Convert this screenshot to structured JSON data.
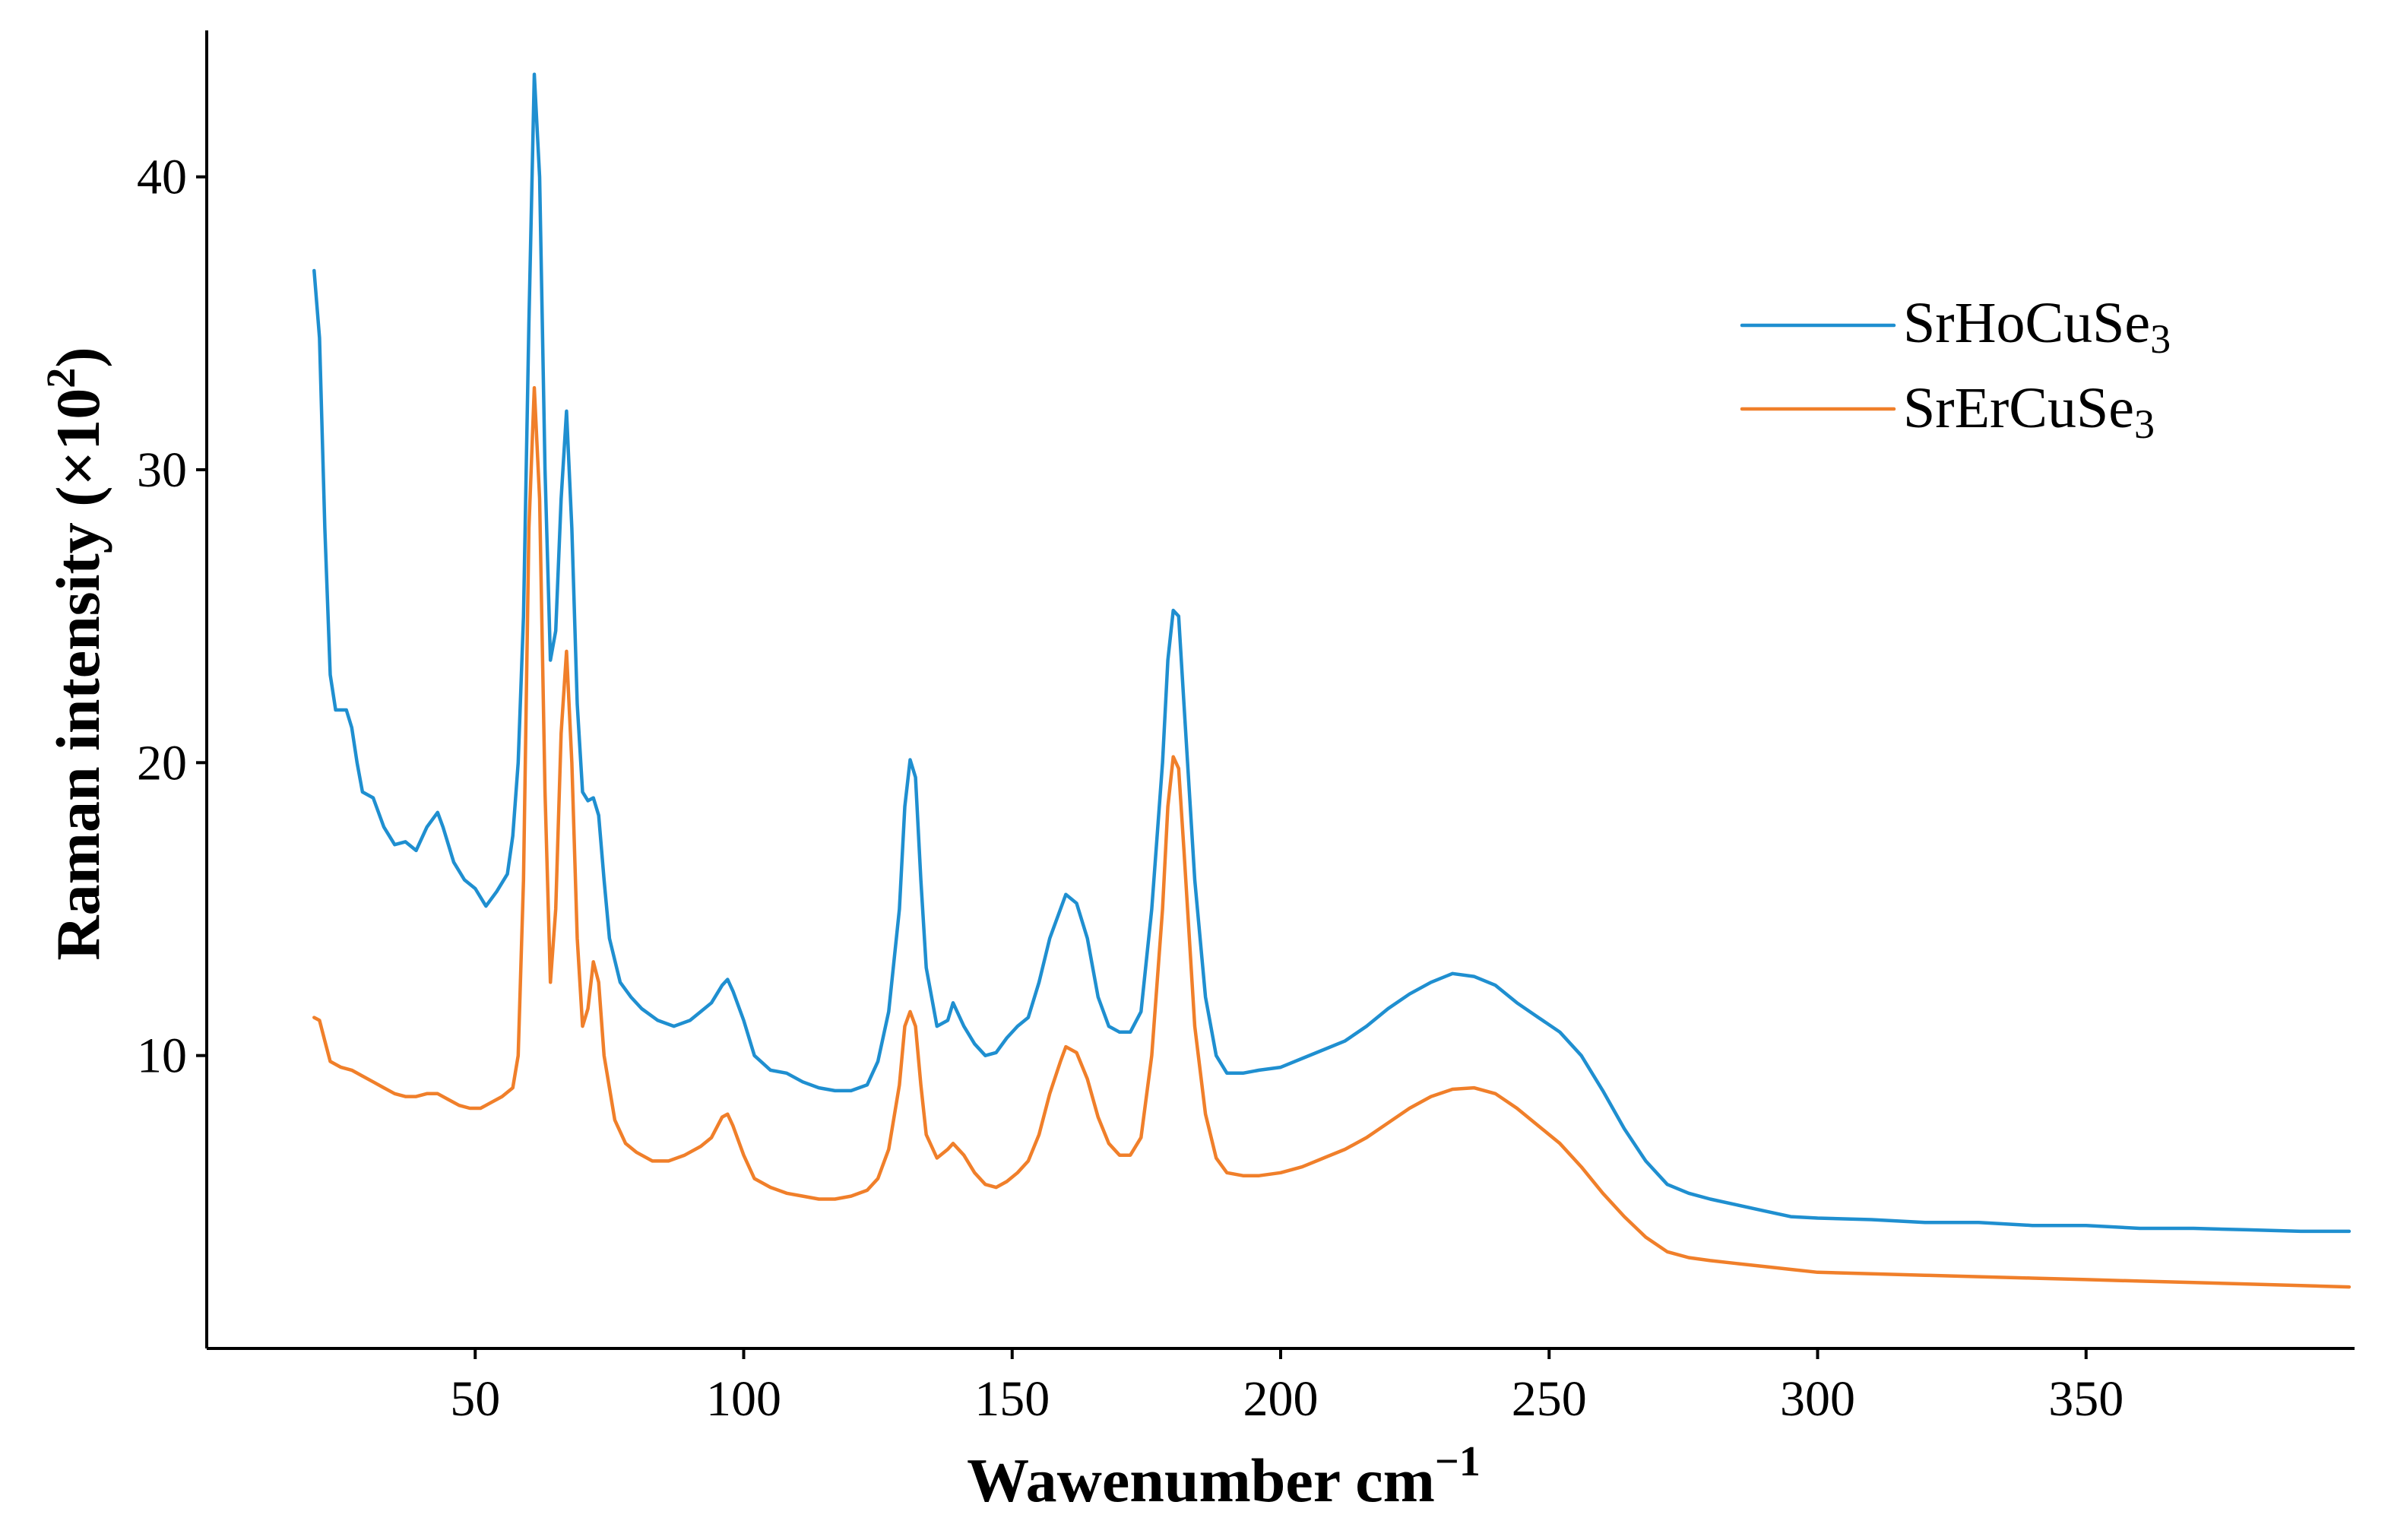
{
  "chart_data": {
    "type": "line",
    "title": "",
    "xlabel": "Wawenumber cm",
    "xlabel_superscript": "−1",
    "ylabel": "Raman intensity (×10",
    "ylabel_superscript": "2",
    "ylabel_suffix": ")",
    "xlim": [
      0,
      400
    ],
    "ylim": [
      0,
      45
    ],
    "xticks": [
      50,
      100,
      150,
      200,
      250,
      300,
      350
    ],
    "xtick_labels": [
      "50",
      "100",
      "150",
      "200",
      "250",
      "300",
      "350"
    ],
    "yticks": [
      10,
      20,
      30,
      40
    ],
    "ytick_labels": [
      "10",
      "20",
      "30",
      "40"
    ],
    "grid": false,
    "legend_position": "top-right",
    "series": [
      {
        "name": "SrHoCuSe",
        "name_subscript": "3",
        "color": "#1f8fd0",
        "points": [
          [
            20,
            36.8
          ],
          [
            21,
            34.5
          ],
          [
            22,
            28
          ],
          [
            23,
            23
          ],
          [
            24,
            21.8
          ],
          [
            26,
            21.8
          ],
          [
            27,
            21.2
          ],
          [
            28,
            20
          ],
          [
            29,
            19
          ],
          [
            31,
            18.8
          ],
          [
            33,
            17.8
          ],
          [
            35,
            17.2
          ],
          [
            37,
            17.3
          ],
          [
            39,
            17.0
          ],
          [
            41,
            17.8
          ],
          [
            43,
            18.3
          ],
          [
            44,
            17.8
          ],
          [
            46,
            16.6
          ],
          [
            48,
            16.0
          ],
          [
            50,
            15.7
          ],
          [
            52,
            15.1
          ],
          [
            54,
            15.6
          ],
          [
            56,
            16.2
          ],
          [
            57,
            17.5
          ],
          [
            58,
            20
          ],
          [
            59,
            25
          ],
          [
            60,
            35
          ],
          [
            61,
            43.5
          ],
          [
            62,
            40
          ],
          [
            63,
            30
          ],
          [
            64,
            23.5
          ],
          [
            65,
            24.5
          ],
          [
            66,
            29
          ],
          [
            67,
            32
          ],
          [
            68,
            28
          ],
          [
            69,
            22
          ],
          [
            70,
            19
          ],
          [
            71,
            18.7
          ],
          [
            72,
            18.8
          ],
          [
            73,
            18.2
          ],
          [
            74,
            16
          ],
          [
            75,
            14
          ],
          [
            77,
            12.5
          ],
          [
            79,
            12.0
          ],
          [
            81,
            11.6
          ],
          [
            84,
            11.2
          ],
          [
            87,
            11.0
          ],
          [
            90,
            11.2
          ],
          [
            92,
            11.5
          ],
          [
            94,
            11.8
          ],
          [
            96,
            12.4
          ],
          [
            97,
            12.6
          ],
          [
            98,
            12.2
          ],
          [
            100,
            11.2
          ],
          [
            102,
            10.0
          ],
          [
            105,
            9.5
          ],
          [
            108,
            9.4
          ],
          [
            111,
            9.1
          ],
          [
            114,
            8.9
          ],
          [
            117,
            8.8
          ],
          [
            120,
            8.8
          ],
          [
            123,
            9.0
          ],
          [
            125,
            9.8
          ],
          [
            127,
            11.5
          ],
          [
            129,
            15
          ],
          [
            130,
            18.5
          ],
          [
            131,
            20.1
          ],
          [
            132,
            19.5
          ],
          [
            133,
            16
          ],
          [
            134,
            13
          ],
          [
            136,
            11.0
          ],
          [
            138,
            11.2
          ],
          [
            139,
            11.8
          ],
          [
            141,
            11.0
          ],
          [
            143,
            10.4
          ],
          [
            145,
            10.0
          ],
          [
            147,
            10.1
          ],
          [
            149,
            10.6
          ],
          [
            151,
            11.0
          ],
          [
            153,
            11.3
          ],
          [
            155,
            12.5
          ],
          [
            157,
            14
          ],
          [
            159,
            15
          ],
          [
            160,
            15.5
          ],
          [
            162,
            15.2
          ],
          [
            164,
            14.0
          ],
          [
            166,
            12
          ],
          [
            168,
            11.0
          ],
          [
            170,
            10.8
          ],
          [
            172,
            10.8
          ],
          [
            174,
            11.5
          ],
          [
            176,
            15
          ],
          [
            178,
            20
          ],
          [
            179,
            23.5
          ],
          [
            180,
            25.2
          ],
          [
            181,
            25.0
          ],
          [
            182,
            22
          ],
          [
            184,
            16
          ],
          [
            186,
            12
          ],
          [
            188,
            10
          ],
          [
            190,
            9.4
          ],
          [
            193,
            9.4
          ],
          [
            196,
            9.5
          ],
          [
            200,
            9.6
          ],
          [
            204,
            9.9
          ],
          [
            208,
            10.2
          ],
          [
            212,
            10.5
          ],
          [
            216,
            11.0
          ],
          [
            220,
            11.6
          ],
          [
            224,
            12.1
          ],
          [
            228,
            12.5
          ],
          [
            232,
            12.8
          ],
          [
            236,
            12.7
          ],
          [
            240,
            12.4
          ],
          [
            244,
            11.8
          ],
          [
            248,
            11.3
          ],
          [
            252,
            10.8
          ],
          [
            256,
            10.0
          ],
          [
            260,
            8.8
          ],
          [
            264,
            7.5
          ],
          [
            268,
            6.4
          ],
          [
            272,
            5.6
          ],
          [
            276,
            5.3
          ],
          [
            280,
            5.1
          ],
          [
            285,
            4.9
          ],
          [
            290,
            4.7
          ],
          [
            295,
            4.5
          ],
          [
            300,
            4.45
          ],
          [
            310,
            4.4
          ],
          [
            320,
            4.3
          ],
          [
            330,
            4.3
          ],
          [
            340,
            4.2
          ],
          [
            350,
            4.2
          ],
          [
            360,
            4.1
          ],
          [
            370,
            4.1
          ],
          [
            380,
            4.05
          ],
          [
            390,
            4.0
          ],
          [
            399,
            4.0
          ]
        ]
      },
      {
        "name": "SrErCuSe",
        "name_subscript": "3",
        "color": "#f07f2a",
        "points": [
          [
            20,
            11.3
          ],
          [
            21,
            11.2
          ],
          [
            22,
            10.5
          ],
          [
            23,
            9.8
          ],
          [
            25,
            9.6
          ],
          [
            27,
            9.5
          ],
          [
            29,
            9.3
          ],
          [
            31,
            9.1
          ],
          [
            33,
            8.9
          ],
          [
            35,
            8.7
          ],
          [
            37,
            8.6
          ],
          [
            39,
            8.6
          ],
          [
            41,
            8.7
          ],
          [
            43,
            8.7
          ],
          [
            45,
            8.5
          ],
          [
            47,
            8.3
          ],
          [
            49,
            8.2
          ],
          [
            51,
            8.2
          ],
          [
            53,
            8.4
          ],
          [
            55,
            8.6
          ],
          [
            57,
            8.9
          ],
          [
            58,
            10
          ],
          [
            59,
            16
          ],
          [
            60,
            28
          ],
          [
            61,
            32.8
          ],
          [
            62,
            29
          ],
          [
            63,
            19
          ],
          [
            64,
            12.5
          ],
          [
            65,
            15
          ],
          [
            66,
            21
          ],
          [
            67,
            23.8
          ],
          [
            68,
            20
          ],
          [
            69,
            14
          ],
          [
            70,
            11
          ],
          [
            71,
            11.6
          ],
          [
            72,
            13.2
          ],
          [
            73,
            12.5
          ],
          [
            74,
            10
          ],
          [
            76,
            7.8
          ],
          [
            78,
            7.0
          ],
          [
            80,
            6.7
          ],
          [
            83,
            6.4
          ],
          [
            86,
            6.4
          ],
          [
            89,
            6.6
          ],
          [
            92,
            6.9
          ],
          [
            94,
            7.2
          ],
          [
            96,
            7.9
          ],
          [
            97,
            8.0
          ],
          [
            98,
            7.6
          ],
          [
            100,
            6.6
          ],
          [
            102,
            5.8
          ],
          [
            105,
            5.5
          ],
          [
            108,
            5.3
          ],
          [
            111,
            5.2
          ],
          [
            114,
            5.1
          ],
          [
            117,
            5.1
          ],
          [
            120,
            5.2
          ],
          [
            123,
            5.4
          ],
          [
            125,
            5.8
          ],
          [
            127,
            6.8
          ],
          [
            129,
            9.0
          ],
          [
            130,
            11.0
          ],
          [
            131,
            11.5
          ],
          [
            132,
            11.0
          ],
          [
            133,
            9.0
          ],
          [
            134,
            7.3
          ],
          [
            136,
            6.5
          ],
          [
            138,
            6.8
          ],
          [
            139,
            7.0
          ],
          [
            141,
            6.6
          ],
          [
            143,
            6.0
          ],
          [
            145,
            5.6
          ],
          [
            147,
            5.5
          ],
          [
            149,
            5.7
          ],
          [
            151,
            6.0
          ],
          [
            153,
            6.4
          ],
          [
            155,
            7.3
          ],
          [
            157,
            8.7
          ],
          [
            159,
            9.8
          ],
          [
            160,
            10.3
          ],
          [
            162,
            10.1
          ],
          [
            164,
            9.2
          ],
          [
            166,
            7.9
          ],
          [
            168,
            7.0
          ],
          [
            170,
            6.6
          ],
          [
            172,
            6.6
          ],
          [
            174,
            7.2
          ],
          [
            176,
            10
          ],
          [
            178,
            15
          ],
          [
            179,
            18.5
          ],
          [
            180,
            20.2
          ],
          [
            181,
            19.8
          ],
          [
            182,
            17
          ],
          [
            184,
            11
          ],
          [
            186,
            8
          ],
          [
            188,
            6.5
          ],
          [
            190,
            6.0
          ],
          [
            193,
            5.9
          ],
          [
            196,
            5.9
          ],
          [
            200,
            6.0
          ],
          [
            204,
            6.2
          ],
          [
            208,
            6.5
          ],
          [
            212,
            6.8
          ],
          [
            216,
            7.2
          ],
          [
            220,
            7.7
          ],
          [
            224,
            8.2
          ],
          [
            228,
            8.6
          ],
          [
            232,
            8.85
          ],
          [
            236,
            8.9
          ],
          [
            240,
            8.7
          ],
          [
            244,
            8.2
          ],
          [
            248,
            7.6
          ],
          [
            252,
            7.0
          ],
          [
            256,
            6.2
          ],
          [
            260,
            5.3
          ],
          [
            264,
            4.5
          ],
          [
            268,
            3.8
          ],
          [
            272,
            3.3
          ],
          [
            276,
            3.1
          ],
          [
            280,
            3.0
          ],
          [
            285,
            2.9
          ],
          [
            290,
            2.8
          ],
          [
            295,
            2.7
          ],
          [
            300,
            2.6
          ],
          [
            310,
            2.55
          ],
          [
            320,
            2.5
          ],
          [
            330,
            2.45
          ],
          [
            340,
            2.4
          ],
          [
            350,
            2.35
          ],
          [
            360,
            2.3
          ],
          [
            370,
            2.25
          ],
          [
            380,
            2.2
          ],
          [
            390,
            2.15
          ],
          [
            399,
            2.1
          ]
        ]
      }
    ]
  }
}
